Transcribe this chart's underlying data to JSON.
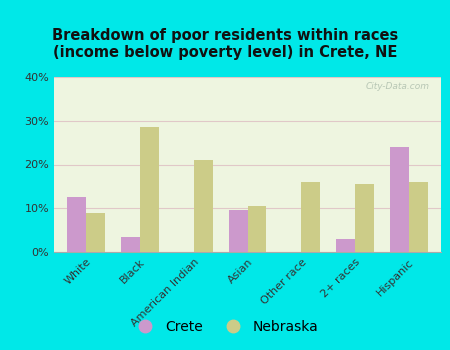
{
  "title": "Breakdown of poor residents within races\n(income below poverty level) in Crete, NE",
  "categories": [
    "White",
    "Black",
    "American Indian",
    "Asian",
    "Other race",
    "2+ races",
    "Hispanic"
  ],
  "crete_values": [
    12.5,
    3.5,
    0,
    9.5,
    0,
    3.0,
    24.0
  ],
  "nebraska_values": [
    9.0,
    28.5,
    21.0,
    10.5,
    16.0,
    15.5,
    16.0
  ],
  "crete_color": "#cc99cc",
  "nebraska_color": "#cccc88",
  "bg_color": "#00e8e8",
  "plot_bg": "#eef5e0",
  "ylim": [
    0,
    40
  ],
  "yticks": [
    0,
    10,
    20,
    30,
    40
  ],
  "ytick_labels": [
    "0%",
    "10%",
    "20%",
    "30%",
    "40%"
  ],
  "watermark": "City-Data.com",
  "legend_labels": [
    "Crete",
    "Nebraska"
  ],
  "bar_width": 0.35
}
